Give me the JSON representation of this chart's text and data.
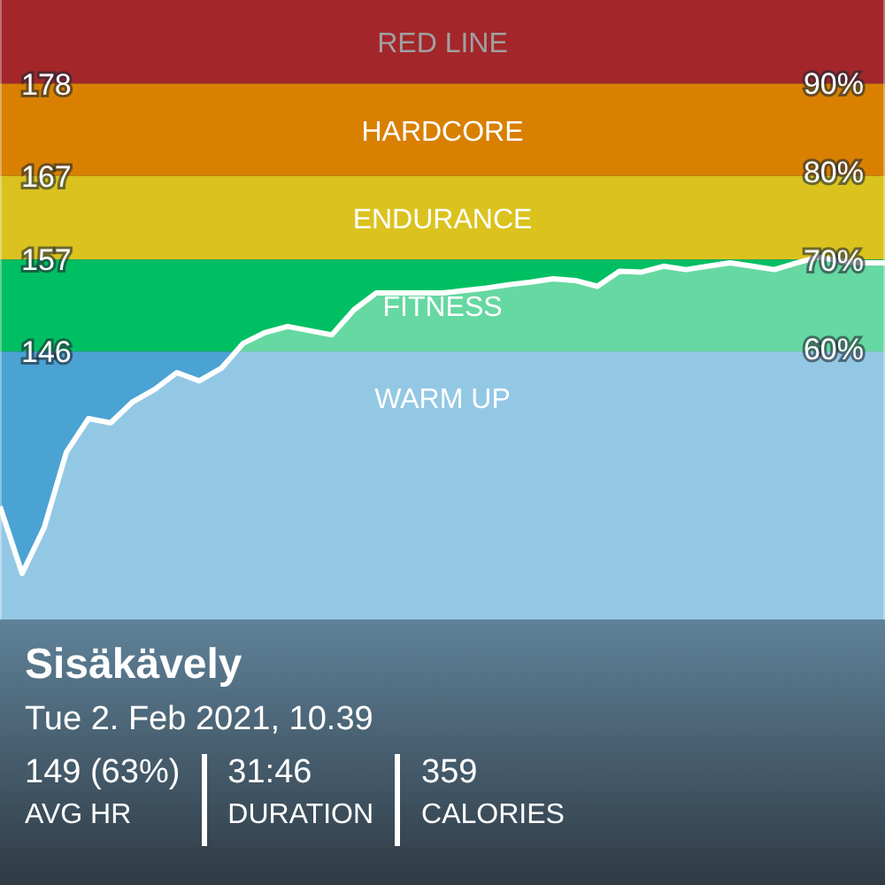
{
  "chart_data": {
    "type": "area",
    "title": "Sisäkävely",
    "subtitle": "Tue 2. Feb 2021, 10.39",
    "categories": [
      null,
      null,
      null,
      null,
      null,
      null,
      null,
      null,
      null,
      null,
      null,
      null,
      null,
      null,
      null,
      null,
      null,
      null,
      null,
      null,
      null,
      null,
      null,
      null,
      null,
      null,
      null,
      null,
      null,
      null,
      null,
      null,
      null,
      null,
      null,
      null,
      null,
      null,
      null,
      null,
      null
    ],
    "series": [
      {
        "color": "#ffffff",
        "values": [
          127.5,
          119.5,
          125,
          134,
          138,
          137.5,
          140,
          141.5,
          143.5,
          142.5,
          144,
          147,
          148.3,
          149,
          148.5,
          148,
          151,
          153,
          153,
          153,
          153,
          153.3,
          153.6,
          154,
          154.3,
          154.7,
          154.5,
          153.8,
          155.6,
          155.5,
          156.2,
          155.8,
          156.2,
          156.6,
          156.2,
          155.8,
          156.6,
          157.3,
          156.8,
          156.6,
          156.6
        ]
      }
    ],
    "ylim": [
      114,
      188
    ],
    "yticks": [
      146,
      157,
      167,
      178
    ],
    "y2lim": [
      29.4,
      99.4
    ],
    "y2ticks": [
      {
        "value": 60,
        "label": "60%"
      },
      {
        "value": 70,
        "label": "70%"
      },
      {
        "value": 80,
        "label": "80%"
      },
      {
        "value": 90,
        "label": "90%"
      }
    ],
    "bands": [
      {
        "axis": "y",
        "from": 178,
        "to": 188,
        "label": "RED LINE",
        "color": "#a3262a"
      },
      {
        "axis": "y",
        "from": 167,
        "to": 178,
        "label": "HARDCORE",
        "color": "#d98000"
      },
      {
        "axis": "y",
        "from": 157,
        "to": 167,
        "label": "ENDURANCE",
        "color": "#dbc21e"
      },
      {
        "axis": "y",
        "from": 146,
        "to": 157,
        "label": "FITNESS",
        "color": "#00bf63"
      },
      {
        "axis": "y",
        "from": 114,
        "to": 146,
        "label": "WARM UP",
        "color": "#4ba3d3"
      }
    ],
    "annotations": [
      "149 (63%)",
      "AVG HR",
      "31:46",
      "DURATION",
      "359",
      "CALORIES"
    ],
    "grid": false,
    "legend": false,
    "marker": "none",
    "line_style": "solid"
  }
}
